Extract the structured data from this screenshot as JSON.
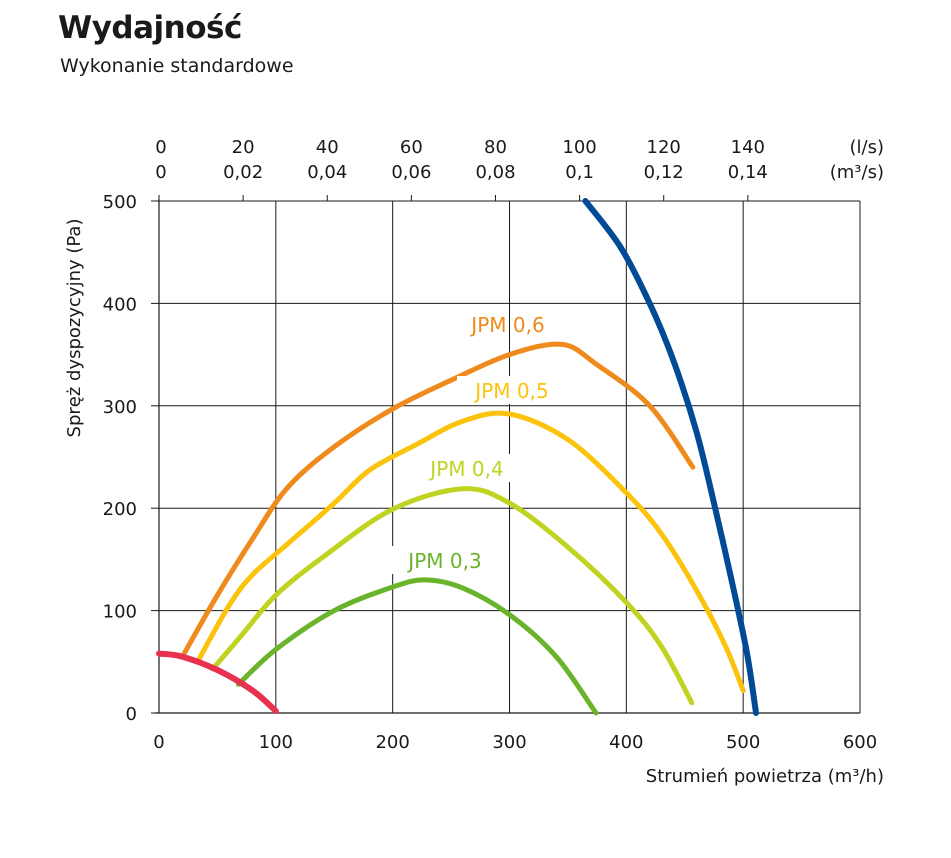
{
  "header": {
    "title": "Wydajność",
    "subtitle": "Wykonanie standardowe"
  },
  "chart_data": {
    "type": "line",
    "title": "Wydajność",
    "subtitle": "Wykonanie standardowe",
    "xlabel": "Strumień powietrza (m³/h)",
    "ylabel": "Spręż dyspozycyjny (Pa)",
    "xlim": [
      0,
      600
    ],
    "ylim": [
      0,
      500
    ],
    "x_ticks": [
      "0",
      "100",
      "200",
      "300",
      "400",
      "500",
      "600"
    ],
    "y_ticks": [
      "0",
      "100",
      "200",
      "300",
      "400",
      "500"
    ],
    "top_axis_ls": {
      "ticks": [
        "0",
        "20",
        "40",
        "60",
        "80",
        "100",
        "120",
        "140"
      ],
      "unit": "(l/s)"
    },
    "top_axis_m3s": {
      "ticks": [
        "0",
        "0,02",
        "0,04",
        "0,06",
        "0,08",
        "0,1",
        "0,12",
        "0,14"
      ],
      "unit": "(m³/s)"
    },
    "grid": true,
    "series": [
      {
        "name": "JPM 0,6",
        "color": "#ef8a1c",
        "points": [
          [
            20,
            55
          ],
          [
            50,
            115
          ],
          [
            80,
            170
          ],
          [
            110,
            220
          ],
          [
            150,
            260
          ],
          [
            200,
            297
          ],
          [
            250,
            325
          ],
          [
            300,
            350
          ],
          [
            345,
            360
          ],
          [
            375,
            340
          ],
          [
            420,
            300
          ],
          [
            457,
            240
          ]
        ]
      },
      {
        "name": "JPM 0,5",
        "color": "#fbc30b",
        "points": [
          [
            33,
            50
          ],
          [
            60,
            105
          ],
          [
            80,
            135
          ],
          [
            110,
            165
          ],
          [
            150,
            205
          ],
          [
            180,
            237
          ],
          [
            220,
            262
          ],
          [
            260,
            285
          ],
          [
            300,
            292
          ],
          [
            350,
            267
          ],
          [
            400,
            215
          ],
          [
            430,
            175
          ],
          [
            460,
            120
          ],
          [
            485,
            65
          ],
          [
            500,
            22
          ]
        ]
      },
      {
        "name": "JPM 0,4",
        "color": "#bfd320",
        "points": [
          [
            46,
            43
          ],
          [
            70,
            75
          ],
          [
            100,
            115
          ],
          [
            140,
            152
          ],
          [
            200,
            199
          ],
          [
            260,
            219
          ],
          [
            300,
            205
          ],
          [
            350,
            162
          ],
          [
            400,
            108
          ],
          [
            430,
            65
          ],
          [
            456,
            10
          ]
        ]
      },
      {
        "name": "JPM 0,3",
        "color": "#6ab42c",
        "points": [
          [
            68,
            28
          ],
          [
            100,
            62
          ],
          [
            150,
            100
          ],
          [
            200,
            123
          ],
          [
            228,
            130
          ],
          [
            260,
            122
          ],
          [
            300,
            96
          ],
          [
            340,
            55
          ],
          [
            374,
            0
          ]
        ]
      },
      {
        "name": "",
        "color": "#e8304f",
        "points": [
          [
            0,
            58
          ],
          [
            20,
            55
          ],
          [
            50,
            42
          ],
          [
            80,
            22
          ],
          [
            100,
            2
          ]
        ]
      },
      {
        "name": "",
        "color": "#004a96",
        "points": [
          [
            365,
            500
          ],
          [
            395,
            455
          ],
          [
            420,
            400
          ],
          [
            440,
            345
          ],
          [
            460,
            275
          ],
          [
            475,
            205
          ],
          [
            490,
            130
          ],
          [
            503,
            60
          ],
          [
            511,
            0
          ]
        ]
      }
    ]
  }
}
